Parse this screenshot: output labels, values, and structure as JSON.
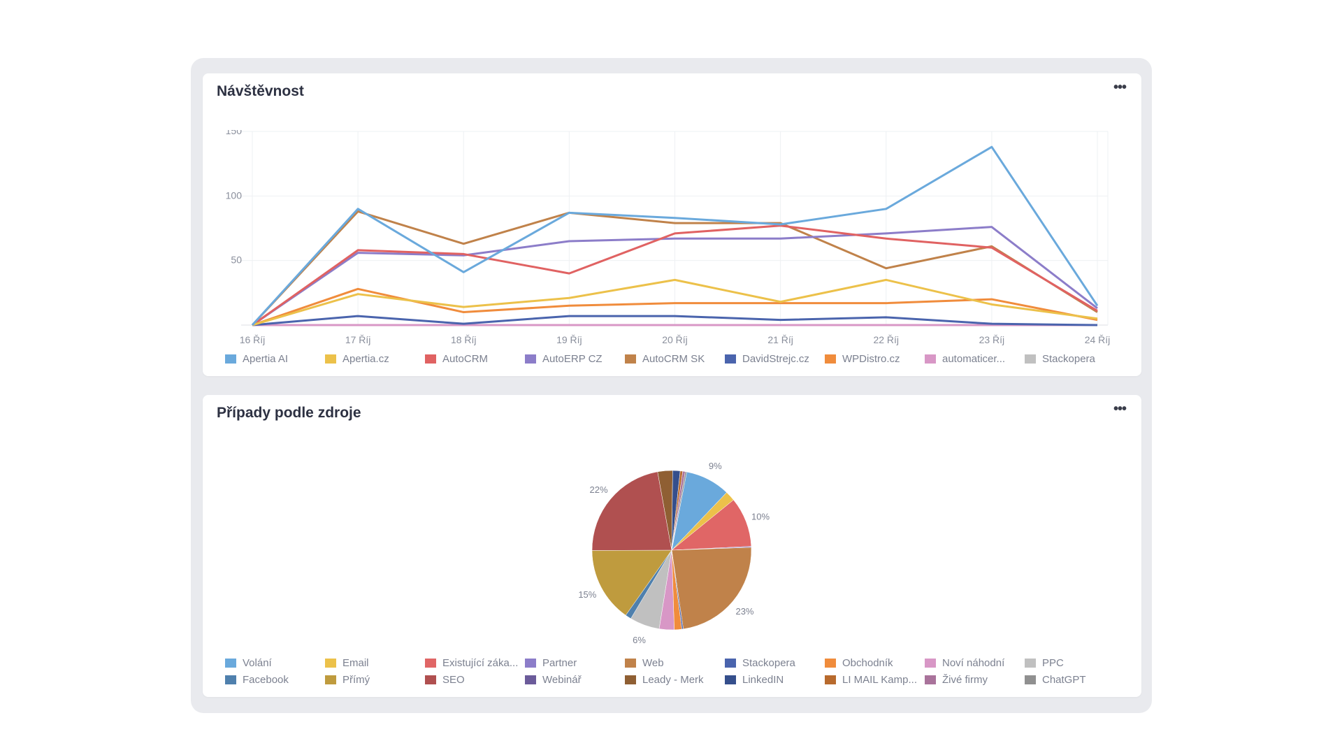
{
  "traffic": {
    "title": "Návštěvnost",
    "menu_icon": "more-dots-icon",
    "chart_data": {
      "type": "line",
      "title": "Návštěvnost",
      "x": [
        "16 Říj",
        "17 Říj",
        "18 Říj",
        "19 Říj",
        "20 Říj",
        "21 Říj",
        "22 Říj",
        "23 Říj",
        "24 Říj"
      ],
      "y_ticks": [
        "150",
        "100",
        "50"
      ],
      "ylim": [
        0,
        150
      ],
      "grid": true,
      "legend_position": "bottom",
      "series": [
        {
          "name": "Apertia AI",
          "color": "#6aa9dc",
          "values": [
            0,
            90,
            41,
            87,
            83,
            78,
            90,
            138,
            15
          ]
        },
        {
          "name": "Apertia.cz",
          "color": "#ecc14a",
          "values": [
            0,
            24,
            14,
            21,
            35,
            18,
            35,
            16,
            5
          ]
        },
        {
          "name": "AutoCRM",
          "color": "#e06262",
          "values": [
            0,
            58,
            55,
            40,
            71,
            77,
            67,
            60,
            11
          ]
        },
        {
          "name": "AutoERP CZ",
          "color": "#8c7dc9",
          "values": [
            0,
            56,
            54,
            65,
            67,
            67,
            71,
            76,
            13
          ]
        },
        {
          "name": "AutoCRM SK",
          "color": "#c0824a",
          "values": [
            0,
            88,
            63,
            87,
            79,
            79,
            44,
            61,
            10
          ]
        },
        {
          "name": "DavidStrejc.cz",
          "color": "#4a64ad",
          "values": [
            0,
            7,
            1,
            7,
            7,
            4,
            6,
            1,
            0
          ]
        },
        {
          "name": "WPDistro.cz",
          "color": "#f08c3c",
          "values": [
            0,
            28,
            10,
            15,
            17,
            17,
            17,
            20,
            4
          ]
        },
        {
          "name": "automaticer...",
          "color": "#d897c6",
          "values": [
            0,
            0,
            0,
            0,
            0,
            0,
            0,
            0,
            0
          ]
        },
        {
          "name": "Stackopera",
          "color": "#c0c0c0",
          "values": [
            0,
            0,
            0,
            0,
            0,
            0,
            0,
            0,
            0
          ]
        }
      ]
    }
  },
  "sources": {
    "title": "Případy podle zdroje",
    "menu_icon": "more-dots-icon",
    "chart_data": {
      "type": "pie",
      "title": "Případy podle zdroje",
      "legend_position": "bottom",
      "slices": [
        {
          "name": "Volání",
          "color": "#6aa9dc",
          "value": 9,
          "label": "9%"
        },
        {
          "name": "Email",
          "color": "#ecc14a",
          "value": 2
        },
        {
          "name": "Existující záka...",
          "color": "#e06666",
          "value": 10,
          "label": "10%"
        },
        {
          "name": "Partner",
          "color": "#8c7dc9",
          "value": 0.2
        },
        {
          "name": "Web",
          "color": "#c0824a",
          "value": 23,
          "label": "23%"
        },
        {
          "name": "Stackopera",
          "color": "#4a64ad",
          "value": 0.3
        },
        {
          "name": "Obchodník",
          "color": "#f08c3c",
          "value": 1.5
        },
        {
          "name": "Noví náhodní",
          "color": "#d897c6",
          "value": 3
        },
        {
          "name": "PPC",
          "color": "#c0c0c0",
          "value": 6,
          "label": "6%"
        },
        {
          "name": "Facebook",
          "color": "#4f80ad",
          "value": 1.2
        },
        {
          "name": "Přímý",
          "color": "#bf9b3e",
          "value": 15,
          "label": "15%"
        },
        {
          "name": "SEO",
          "color": "#b05050",
          "value": 22,
          "label": "22%"
        },
        {
          "name": "Webinář",
          "color": "#6b5b9a",
          "value": 0
        },
        {
          "name": "Leady - Merk",
          "color": "#8f5f33",
          "value": 3
        },
        {
          "name": "LinkedIN",
          "color": "#354f8c",
          "value": 1.5
        },
        {
          "name": "LI MAIL Kamp...",
          "color": "#b86a2d",
          "value": 0.5
        },
        {
          "name": "Živé firmy",
          "color": "#a9739b",
          "value": 0.5
        },
        {
          "name": "ChatGPT",
          "color": "#909090",
          "value": 0.3
        }
      ]
    }
  }
}
